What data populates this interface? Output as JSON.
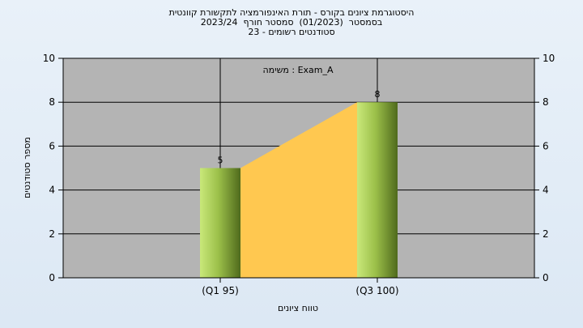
{
  "chart_data": {
    "type": "bar",
    "title_lines": [
      "היסטוגרמת ציונים בקורס - תורת האינפורמציה לתקשורת קוונטית",
      "בסמסטר  (01/2023)  סמסטר חורף  2023/24",
      "סטודנטים רשומים - 23"
    ],
    "annotation": "משימה : Exam_A",
    "categories": [
      "(Q1 95)",
      "(Q3 100)"
    ],
    "values": [
      5,
      8
    ],
    "data_labels": [
      "5",
      "8"
    ],
    "xlabel": "טווח ציונים",
    "ylabel": "מספר סטודנטים",
    "ylim": [
      0,
      10
    ],
    "yticks": [
      "0",
      "2",
      "4",
      "6",
      "8",
      "10"
    ],
    "grid": true,
    "area_fill": "between-bars",
    "colors": {
      "plot_background": "#b4b4b4",
      "area": "#ffc850",
      "bar_light": "#c9e87a",
      "bar_dark": "#4f6a1c",
      "grid": "#000000"
    }
  }
}
